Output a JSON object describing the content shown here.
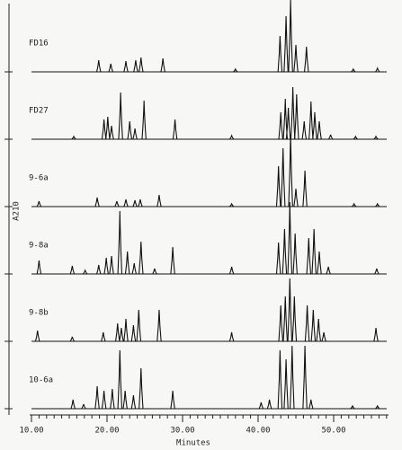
{
  "chart_data": {
    "type": "chromatogram",
    "x_label": "Minutes",
    "y_label": "A210",
    "xlim": [
      10,
      57.5
    ],
    "xticks": [
      {
        "value": 10,
        "label": "10.00"
      },
      {
        "value": 20,
        "label": "20.00"
      },
      {
        "value": 30,
        "label": "30.00"
      },
      {
        "value": 40,
        "label": "40.00"
      },
      {
        "value": 50,
        "label": "50.00"
      }
    ],
    "xminorticks": [
      11,
      12,
      13,
      14,
      15,
      16,
      17,
      18,
      19,
      21,
      22,
      23,
      24,
      25,
      26,
      27,
      28,
      29,
      31,
      32,
      33,
      34,
      35,
      36,
      37,
      38,
      39,
      41,
      42,
      43,
      44,
      45,
      46,
      47,
      48,
      49,
      51,
      52,
      53,
      54,
      55,
      56,
      57
    ],
    "ylim": [
      0,
      80
    ],
    "color": "#111111",
    "series": [
      {
        "name": "FD16",
        "x": [
          18.9,
          20.5,
          22.5,
          23.8,
          24.5,
          27.4,
          37.0,
          42.9,
          43.7,
          44.3,
          45.0,
          46.4,
          52.6,
          55.8
        ],
        "values": [
          13,
          9,
          12,
          13,
          16,
          15,
          3,
          40,
          62,
          80,
          30,
          28,
          3,
          4
        ]
      },
      {
        "name": "FD27",
        "x": [
          15.6,
          19.6,
          20.1,
          20.6,
          21.8,
          23.0,
          23.7,
          24.9,
          29.0,
          36.5,
          43.0,
          43.6,
          44.0,
          44.6,
          45.1,
          46.1,
          47.0,
          47.5,
          48.1,
          49.6,
          52.9,
          55.6
        ],
        "values": [
          3,
          22,
          25,
          15,
          52,
          20,
          12,
          43,
          22,
          4,
          30,
          45,
          35,
          58,
          50,
          20,
          42,
          30,
          20,
          5,
          3,
          3
        ]
      },
      {
        "name": "9-6a",
        "x": [
          11.0,
          18.7,
          21.3,
          22.5,
          23.7,
          24.4,
          26.9,
          36.5,
          42.7,
          43.3,
          44.3,
          45.0,
          46.2,
          52.7,
          55.8
        ],
        "values": [
          6,
          10,
          6,
          8,
          7,
          8,
          13,
          3,
          45,
          65,
          80,
          20,
          40,
          3,
          3
        ]
      },
      {
        "name": "9-8a",
        "x": [
          11.0,
          15.4,
          17.1,
          18.9,
          19.9,
          20.6,
          21.7,
          22.7,
          23.6,
          24.5,
          26.3,
          28.7,
          36.5,
          42.7,
          43.5,
          44.2,
          44.9,
          46.7,
          47.4,
          48.1,
          49.3,
          55.7
        ],
        "values": [
          15,
          9,
          4,
          10,
          18,
          20,
          70,
          25,
          12,
          36,
          6,
          30,
          8,
          35,
          50,
          80,
          45,
          40,
          50,
          25,
          8,
          6
        ]
      },
      {
        "name": "9-8b",
        "x": [
          10.8,
          15.4,
          19.5,
          21.4,
          21.9,
          22.5,
          23.5,
          24.2,
          26.9,
          36.5,
          43.0,
          43.6,
          44.2,
          44.8,
          46.5,
          47.3,
          48.0,
          48.7,
          55.6
        ],
        "values": [
          12,
          5,
          10,
          20,
          15,
          25,
          18,
          35,
          35,
          10,
          40,
          50,
          70,
          50,
          40,
          35,
          25,
          10,
          15
        ]
      },
      {
        "name": "10-6a",
        "x": [
          15.5,
          16.9,
          18.7,
          19.6,
          20.7,
          21.7,
          22.4,
          23.5,
          24.5,
          28.7,
          40.4,
          41.5,
          42.9,
          43.7,
          44.5,
          46.2,
          47.0,
          52.5,
          55.8
        ],
        "values": [
          10,
          5,
          25,
          20,
          22,
          65,
          20,
          15,
          45,
          20,
          7,
          10,
          65,
          55,
          70,
          70,
          10,
          3,
          3
        ]
      }
    ]
  }
}
